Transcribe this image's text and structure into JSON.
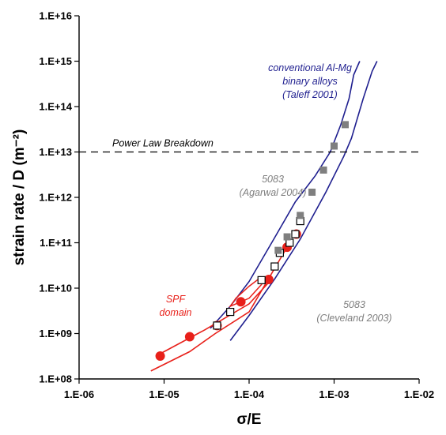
{
  "chart_data": {
    "type": "scatter",
    "xlabel": "σ/E",
    "ylabel": "strain rate / D (m⁻²)",
    "xscale": "log",
    "yscale": "log",
    "xlim": [
      1e-06,
      0.01
    ],
    "ylim": [
      100000000.0,
      1e+16
    ],
    "x_ticks": [
      "1.E-06",
      "1.E-05",
      "1.E-04",
      "1.E-03",
      "1.E-02"
    ],
    "y_ticks": [
      "1.E+08",
      "1.E+09",
      "1.E+10",
      "1.E+11",
      "1.E+12",
      "1.E+13",
      "1.E+14",
      "1.E+15",
      "1.E+16"
    ],
    "grid": false,
    "threshold": {
      "label": "Power Law Breakdown",
      "y": 10000000000000.0
    },
    "annotations": [
      {
        "id": "conventional",
        "lines": [
          "conventional Al-Mg",
          "binary alloys",
          "(Taleff 2001)"
        ],
        "color": "#1f1f8f"
      },
      {
        "id": "agarwal",
        "lines": [
          "5083",
          "(Agarwal 2004)"
        ],
        "color": "#7f7f7f"
      },
      {
        "id": "cleveland",
        "lines": [
          "5083",
          "(Cleveland 2003)"
        ],
        "color": "#7f7f7f"
      },
      {
        "id": "spf",
        "lines": [
          "SPF",
          "domain"
        ],
        "color": "#e8201a"
      }
    ],
    "series": [
      {
        "marker": "circle",
        "color": "#e8201a",
        "points": [
          [
            9e-06,
            320000000.0
          ],
          [
            2e-05,
            850000000.0
          ],
          [
            4.2e-05,
            1500000000.0
          ],
          [
            8e-05,
            5000000000.0
          ],
          [
            0.00017,
            15500000000.0
          ],
          [
            0.00028,
            80000000000.0
          ],
          [
            0.00036,
            155000000000.0
          ]
        ]
      },
      {
        "marker": "square-open",
        "color": "#000000",
        "points": [
          [
            4.2e-05,
            1500000000.0
          ],
          [
            6e-05,
            3000000000.0
          ],
          [
            0.00014,
            15000000000.0
          ],
          [
            0.0002,
            30000000000.0
          ],
          [
            0.00023,
            60000000000.0
          ],
          [
            0.0003,
            100000000000.0
          ],
          [
            0.00035,
            155000000000.0
          ],
          [
            0.0004,
            300000000000.0
          ]
        ]
      },
      {
        "marker": "square",
        "color": "#7f7f7f",
        "points": [
          [
            0.00022,
            68000000000.0
          ],
          [
            0.00028,
            135000000000.0
          ],
          [
            0.0004,
            400000000000.0
          ],
          [
            0.00055,
            1300000000000.0
          ],
          [
            0.00075,
            4000000000000.0
          ],
          [
            0.001,
            13500000000000.0
          ],
          [
            0.00135,
            40000000000000.0
          ]
        ]
      }
    ],
    "curves": [
      {
        "color": "#1f1f8f",
        "points": [
          [
            3.5e-05,
            1300000000.0
          ],
          [
            6e-05,
            4000000000.0
          ],
          [
            0.0001,
            14000000000.0
          ],
          [
            0.0002,
            130000000000.0
          ],
          [
            0.00035,
            800000000000.0
          ],
          [
            0.0006,
            3000000000000.0
          ],
          [
            0.0009,
            10000000000000.0
          ],
          [
            0.0012,
            40000000000000.0
          ],
          [
            0.0015,
            150000000000000.0
          ],
          [
            0.0017,
            500000000000000.0
          ],
          [
            0.002,
            1000000000000000.0
          ]
        ]
      },
      {
        "color": "#1f1f8f",
        "points": [
          [
            6e-05,
            700000000.0
          ],
          [
            0.0001,
            2500000000.0
          ],
          [
            0.0002,
            16000000000.0
          ],
          [
            0.0004,
            120000000000.0
          ],
          [
            0.0008,
            1300000000000.0
          ],
          [
            0.0013,
            8000000000000.0
          ],
          [
            0.0016,
            20000000000000.0
          ],
          [
            0.0022,
            150000000000000.0
          ],
          [
            0.0028,
            600000000000000.0
          ],
          [
            0.0032,
            1000000000000000.0
          ]
        ]
      },
      {
        "color": "#e8201a",
        "points": [
          [
            8e-06,
            320000000.0
          ],
          [
            3e-05,
            1200000000.0
          ],
          [
            0.0001,
            4500000000.0
          ],
          [
            0.00018,
            15000000000.0
          ]
        ]
      },
      {
        "color": "#e8201a",
        "points": [
          [
            7e-06,
            150000000.0
          ],
          [
            2e-05,
            400000000.0
          ],
          [
            4e-05,
            1000000000.0
          ],
          [
            0.0001,
            3000000000.0
          ],
          [
            0.0003,
            100000000000.0
          ]
        ]
      }
    ],
    "closed_curves": [
      {
        "color": "#e8201a",
        "points": [
          [
            6e-05,
            4000000000.0
          ],
          [
            0.0001,
            6000000000.0
          ],
          [
            0.00014,
            12000000000.0
          ],
          [
            0.00013,
            16000000000.0
          ],
          [
            0.0001,
            11000000000.0
          ],
          [
            7e-05,
            6000000000.0
          ]
        ]
      }
    ]
  }
}
